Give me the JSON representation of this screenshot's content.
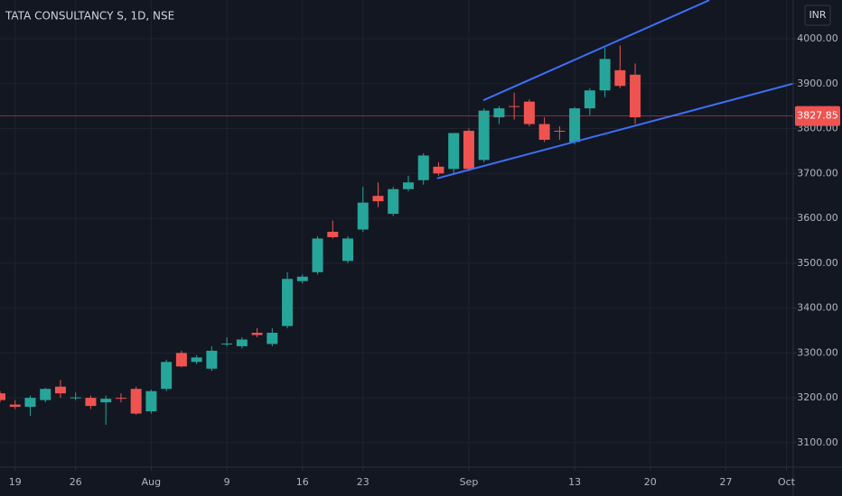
{
  "chart_data": {
    "type": "candlestick",
    "title": "TATA CONSULTANCY S, 1D, NSE",
    "currency": "INR",
    "up_color": "#26a69a",
    "down_color": "#ef5350",
    "open": [
      3210,
      3185,
      3180,
      3195,
      3225,
      3200,
      3200,
      3190,
      3200,
      3220,
      3170,
      3220,
      3300,
      3280,
      3265,
      3320,
      3315,
      3345,
      3320,
      3360,
      3460,
      3480,
      3570,
      3505,
      3575,
      3650,
      3610,
      3665,
      3685,
      3715,
      3710,
      3795,
      3730,
      3825,
      3850,
      3860,
      3810,
      3795,
      3770,
      3845,
      3885,
      3930,
      3920
    ],
    "high": [
      3215,
      3195,
      3205,
      3222,
      3240,
      3212,
      3205,
      3205,
      3210,
      3225,
      3218,
      3285,
      3305,
      3295,
      3315,
      3335,
      3335,
      3355,
      3355,
      3480,
      3475,
      3560,
      3595,
      3560,
      3670,
      3680,
      3670,
      3695,
      3745,
      3725,
      3790,
      3800,
      3845,
      3850,
      3880,
      3865,
      3825,
      3805,
      3848,
      3890,
      3980,
      3985,
      3945
    ],
    "low": [
      3190,
      3175,
      3160,
      3190,
      3200,
      3195,
      3175,
      3140,
      3190,
      3162,
      3165,
      3215,
      3268,
      3275,
      3260,
      3315,
      3310,
      3335,
      3315,
      3355,
      3455,
      3475,
      3555,
      3500,
      3570,
      3625,
      3605,
      3660,
      3675,
      3695,
      3700,
      3705,
      3725,
      3810,
      3820,
      3805,
      3770,
      3775,
      3765,
      3830,
      3870,
      3890,
      3810
    ],
    "close": [
      3195,
      3180,
      3200,
      3220,
      3210,
      3201,
      3182,
      3198,
      3198,
      3165,
      3215,
      3280,
      3270,
      3290,
      3305,
      3321,
      3330,
      3340,
      3345,
      3465,
      3470,
      3555,
      3558,
      3555,
      3635,
      3638,
      3665,
      3680,
      3740,
      3700,
      3790,
      3710,
      3840,
      3845,
      3848,
      3810,
      3775,
      3794,
      3845,
      3885,
      3955,
      3895,
      3825
    ],
    "last_price": 3827.85,
    "last_price_color": "#ef5350",
    "trendlines": [
      {
        "color": "#3d6ff5",
        "x": [
          31.96,
          46.9
        ],
        "y": [
          3863,
          4086
        ]
      },
      {
        "color": "#3d6ff5",
        "x": [
          28.9,
          52.45
        ],
        "y": [
          3689,
          3900
        ]
      }
    ],
    "xlim": [
      0,
      52.45
    ],
    "xticks": [
      {
        "value": 1,
        "label": "19"
      },
      {
        "value": 5,
        "label": "26"
      },
      {
        "value": 10,
        "label": "Aug"
      },
      {
        "value": 15,
        "label": "9"
      },
      {
        "value": 20,
        "label": "16"
      },
      {
        "value": 24,
        "label": "23"
      },
      {
        "value": 31,
        "label": "Sep"
      },
      {
        "value": 38,
        "label": "13"
      },
      {
        "value": 43,
        "label": "20"
      },
      {
        "value": 48,
        "label": "27"
      },
      {
        "value": 52,
        "label": "Oct"
      }
    ],
    "ylim": [
      3045.6,
      4086.4
    ],
    "yticks": [
      {
        "value": 3100,
        "label": "3100.00"
      },
      {
        "value": 3200,
        "label": "3200.00"
      },
      {
        "value": 3300,
        "label": "3300.00"
      },
      {
        "value": 3400,
        "label": "3400.00"
      },
      {
        "value": 3500,
        "label": "3500.00"
      },
      {
        "value": 3600,
        "label": "3600.00"
      },
      {
        "value": 3700,
        "label": "3700.00"
      },
      {
        "value": 3800,
        "label": "3800.00"
      },
      {
        "value": 3900,
        "label": "3900.00"
      },
      {
        "value": 4000,
        "label": "4000.00"
      }
    ],
    "grid": true
  }
}
